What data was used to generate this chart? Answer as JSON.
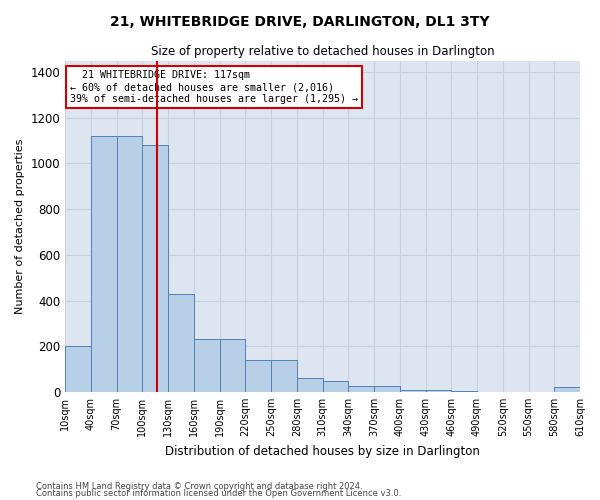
{
  "title": "21, WHITEBRIDGE DRIVE, DARLINGTON, DL1 3TY",
  "subtitle": "Size of property relative to detached houses in Darlington",
  "xlabel": "Distribution of detached houses by size in Darlington",
  "ylabel": "Number of detached properties",
  "footnote1": "Contains HM Land Registry data © Crown copyright and database right 2024.",
  "footnote2": "Contains public sector information licensed under the Open Government Licence v3.0.",
  "bin_edges": [
    10,
    40,
    70,
    100,
    130,
    160,
    190,
    220,
    250,
    280,
    310,
    340,
    370,
    400,
    430,
    460,
    490,
    520,
    550,
    580,
    610
  ],
  "bar_heights": [
    200,
    1120,
    1120,
    1080,
    430,
    230,
    230,
    140,
    140,
    60,
    50,
    25,
    25,
    10,
    10,
    5,
    0,
    0,
    0,
    20
  ],
  "bar_color": "#b8cfe8",
  "bar_edge_color": "#5580b0",
  "property_line_x": 117,
  "annotation_text": "  21 WHITEBRIDGE DRIVE: 117sqm\n← 60% of detached houses are smaller (2,016)\n39% of semi-detached houses are larger (1,295) →",
  "annotation_box_color": "#ffffff",
  "annotation_box_edge_color": "#cc0000",
  "property_line_color": "#cc0000",
  "ylim": [
    0,
    1450
  ],
  "yticks": [
    0,
    200,
    400,
    600,
    800,
    1000,
    1200,
    1400
  ],
  "grid_color": "#c8d0dc",
  "bg_color": "#dde5f0"
}
